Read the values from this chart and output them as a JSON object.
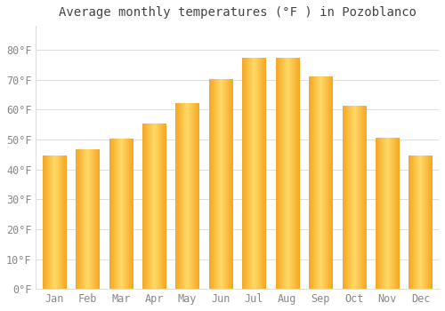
{
  "title": "Average monthly temperatures (°F ) in Pozoblanco",
  "months": [
    "Jan",
    "Feb",
    "Mar",
    "Apr",
    "May",
    "Jun",
    "Jul",
    "Aug",
    "Sep",
    "Oct",
    "Nov",
    "Dec"
  ],
  "values": [
    44.5,
    46.5,
    50.0,
    55.0,
    62.0,
    70.0,
    77.0,
    77.0,
    71.0,
    61.0,
    50.5,
    44.5
  ],
  "bar_color_edge": "#F5A623",
  "bar_color_center": "#FFD966",
  "background_color": "#FFFFFF",
  "grid_color": "#DDDDDD",
  "text_color": "#888888",
  "title_color": "#444444",
  "ylim": [
    0,
    88
  ],
  "yticks": [
    0,
    10,
    20,
    30,
    40,
    50,
    60,
    70,
    80
  ],
  "ytick_labels": [
    "0°F",
    "10°F",
    "20°F",
    "30°F",
    "40°F",
    "50°F",
    "60°F",
    "70°F",
    "80°F"
  ],
  "title_fontsize": 10,
  "tick_fontsize": 8.5,
  "bar_width": 0.7
}
